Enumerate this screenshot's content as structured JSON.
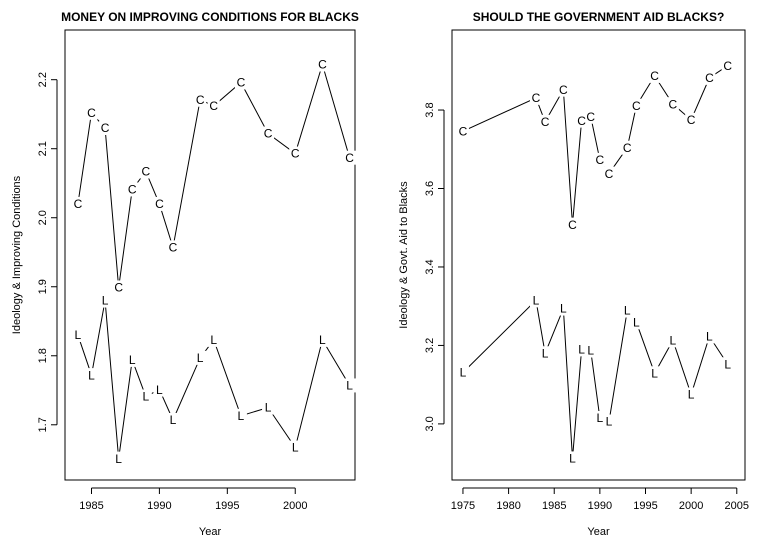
{
  "chart_data": [
    {
      "type": "line",
      "title": "MONEY ON IMPROVING CONDITIONS FOR BLACKS",
      "xlabel": "Year",
      "ylabel": "Ideology & Improving Conditions",
      "x": [
        1984,
        1985,
        1986,
        1987,
        1988,
        1989,
        1990,
        1991,
        1993,
        1994,
        1996,
        1998,
        2000,
        2002,
        2004
      ],
      "series": [
        {
          "name": "C",
          "color": "#000000",
          "values": [
            2.02,
            2.152,
            2.13,
            1.899,
            2.041,
            2.067,
            2.02,
            1.957,
            2.171,
            2.162,
            2.196,
            2.122,
            2.093,
            2.222,
            2.087
          ]
        },
        {
          "name": "L",
          "color": "#000000",
          "values": [
            1.83,
            1.772,
            1.88,
            1.651,
            1.794,
            1.741,
            1.751,
            1.707,
            1.797,
            1.823,
            1.713,
            1.725,
            1.667,
            1.823,
            1.757
          ]
        }
      ],
      "xlim": [
        1983.05,
        2004.4
      ],
      "ylim": [
        1.62,
        2.272
      ],
      "xticks": [
        1985,
        1990,
        1995,
        2000
      ],
      "yticks": [
        1.7,
        1.8,
        1.9,
        {
          "value": 2,
          "label": "2.0"
        },
        2.1,
        2.2
      ]
    },
    {
      "type": "line",
      "title": "SHOULD THE GOVERNMENT AID BLACKS?",
      "xlabel": "Year",
      "ylabel": "Ideology & Govt. Aid to Blacks",
      "x": [
        1975,
        1983,
        1984,
        1986,
        1987,
        1988,
        1989,
        1990,
        1991,
        1993,
        1994,
        1996,
        1998,
        2000,
        2002,
        2004
      ],
      "series": [
        {
          "name": "C",
          "color": "#000000",
          "values": [
            3.746,
            3.831,
            3.77,
            3.852,
            3.508,
            3.773,
            3.783,
            3.673,
            3.638,
            3.704,
            3.811,
            3.887,
            3.815,
            3.775,
            3.882,
            3.913
          ]
        },
        {
          "name": "L",
          "color": "#000000",
          "values": [
            3.131,
            3.315,
            3.18,
            3.294,
            2.912,
            3.19,
            3.187,
            3.015,
            3.006,
            3.289,
            3.259,
            3.129,
            3.213,
            3.075,
            3.223,
            3.152
          ]
        }
      ],
      "xlim": [
        1973.8,
        2005.9
      ],
      "ylim": [
        2.857,
        4.004
      ],
      "xticks": [
        1975,
        1980,
        1985,
        1990,
        1995,
        2000,
        2005
      ],
      "yticks": [
        {
          "value": 3,
          "label": "3.0"
        },
        3.2,
        3.4,
        3.6,
        3.8
      ]
    }
  ]
}
